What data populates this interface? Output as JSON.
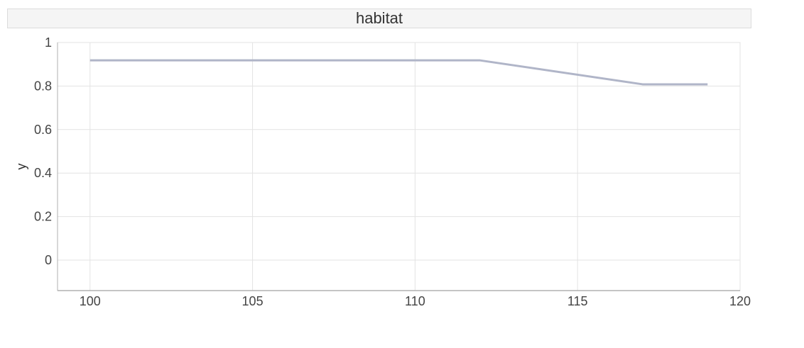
{
  "chart_data": {
    "type": "line",
    "title": "habitat",
    "xlabel": "",
    "ylabel": "y",
    "xlim": [
      99,
      120
    ],
    "ylim": [
      -0.14,
      1
    ],
    "x_ticks": [
      100,
      105,
      110,
      115,
      120
    ],
    "x_tick_labels": [
      "100",
      "105",
      "110",
      "115",
      "120"
    ],
    "y_ticks": [
      0,
      0.2,
      0.4,
      0.6,
      0.8,
      1
    ],
    "y_tick_labels": [
      "0",
      "0.2",
      "0.4",
      "0.6",
      "0.8",
      "1"
    ],
    "grid": true,
    "series": [
      {
        "color": "#b0b5c8",
        "x": [
          100,
          112,
          117,
          119
        ],
        "y": [
          0.918,
          0.918,
          0.808,
          0.808
        ]
      }
    ]
  }
}
